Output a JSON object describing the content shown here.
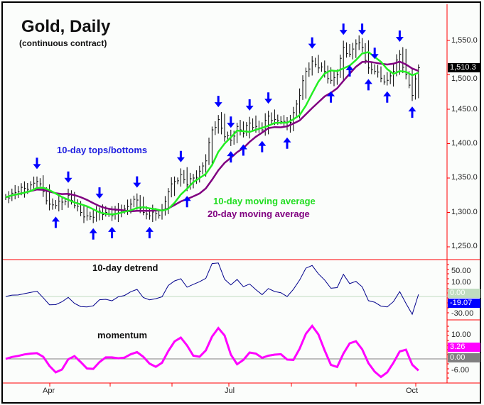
{
  "chart_data": [
    {
      "type": "bar",
      "title": "Gold, Daily",
      "subtitle": "(continuous contract)",
      "annotations": {
        "tops_bottoms": "10-day tops/bottoms",
        "ma10": "10-day moving average",
        "ma20": "20-day moving average"
      },
      "y_ticks": [
        "1,550.0",
        "1,500.0",
        "1,450.0",
        "1,400.0",
        "1,350.0",
        "1,300.0",
        "1,250.0"
      ],
      "ylim": [
        1230,
        1600
      ],
      "last_value": "1,510.3",
      "x_ticks": [
        "Apr",
        "Jul",
        "Oct"
      ],
      "closes": [
        1322,
        1328,
        1330,
        1335,
        1340,
        1345,
        1330,
        1312,
        1310,
        1315,
        1325,
        1310,
        1300,
        1295,
        1293,
        1302,
        1300,
        1295,
        1303,
        1305,
        1312,
        1318,
        1300,
        1295,
        1298,
        1302,
        1330,
        1345,
        1355,
        1340,
        1350,
        1360,
        1375,
        1420,
        1435,
        1410,
        1405,
        1425,
        1415,
        1430,
        1425,
        1420,
        1440,
        1435,
        1432,
        1425,
        1445,
        1470,
        1505,
        1520,
        1510,
        1505,
        1492,
        1500,
        1540,
        1530,
        1545,
        1540,
        1510,
        1505,
        1495,
        1492,
        1505,
        1530,
        1500,
        1470,
        1510.3
      ],
      "top_arrows": [
        5,
        10,
        15,
        21,
        28,
        34,
        36,
        39,
        42,
        49,
        54,
        57,
        59,
        63
      ],
      "bottom_arrows": [
        8,
        14,
        17,
        23,
        29,
        36,
        38,
        41,
        45,
        52,
        55,
        58,
        61,
        65
      ],
      "colors": {
        "bars": "#000000",
        "ma10": "#22ee22",
        "ma20": "#800080",
        "arrows": "#0000ff",
        "axis": "#ff0000"
      }
    },
    {
      "type": "line",
      "label": "10-day detrend",
      "y_ticks": [
        "50.00",
        "10.00",
        "-30.00"
      ],
      "zero_label": "0.00",
      "last_value": "-19.07",
      "colors": {
        "line": "#00008b",
        "zero": "#c0dcc0",
        "badge": "#0000ff"
      }
    },
    {
      "type": "line",
      "label": "momentum",
      "y_ticks": [
        "10.00",
        "-6.00"
      ],
      "zero_label": "0.00",
      "last_value": "3.26",
      "colors": {
        "line": "#ff00ff",
        "zero": "#808080",
        "badge": "#ff00ff"
      }
    }
  ]
}
